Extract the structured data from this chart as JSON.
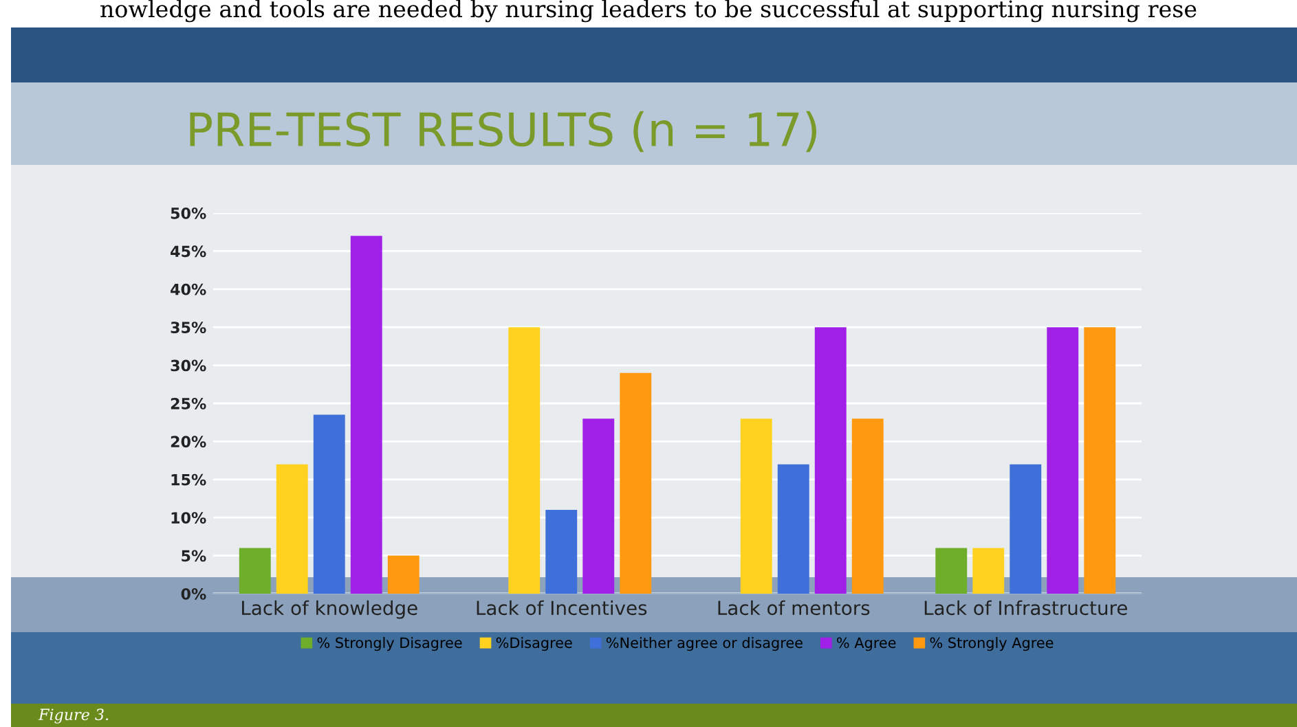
{
  "chart_data": {
    "type": "bar",
    "title": "PRE-TEST RESULTS (n = 17)",
    "categories": [
      "Lack of knowledge",
      "Lack of Incentives",
      "Lack of mentors",
      "Lack of Infrastructure"
    ],
    "series": [
      {
        "name": "% Strongly Disagree",
        "color": "#6fae2a",
        "values": [
          6,
          0,
          0,
          6
        ]
      },
      {
        "name": "%Disagree",
        "color": "#ffd21f",
        "values": [
          17,
          35,
          23,
          6
        ]
      },
      {
        "name": "%Neither agree or disagree",
        "color": "#3f6fd8",
        "values": [
          23.5,
          11,
          17,
          17
        ]
      },
      {
        "name": "% Agree",
        "color": "#a020e8",
        "values": [
          47,
          23,
          35,
          35
        ]
      },
      {
        "name": "% Strongly Agree",
        "color": "#ff9a10",
        "values": [
          5,
          29,
          23,
          35
        ]
      }
    ],
    "ylim": [
      0,
      50
    ],
    "yticks": [
      {
        "value": 0,
        "label": "0%"
      },
      {
        "value": 5,
        "label": "5%"
      },
      {
        "value": 10,
        "label": "10%"
      },
      {
        "value": 15,
        "label": "15%"
      },
      {
        "value": 20,
        "label": "20%"
      },
      {
        "value": 25,
        "label": "25%"
      },
      {
        "value": 30,
        "label": "30%"
      },
      {
        "value": 35,
        "label": "35%"
      },
      {
        "value": 40,
        "label": "40%"
      },
      {
        "value": 45,
        "label": "45%"
      },
      {
        "value": 50,
        "label": "50%"
      }
    ],
    "grid": "y",
    "legend": "bottom",
    "annotations": [
      "nowledge and tools are needed by nursing leaders to be successful at supporting nursing rese",
      "Figure 3."
    ]
  }
}
